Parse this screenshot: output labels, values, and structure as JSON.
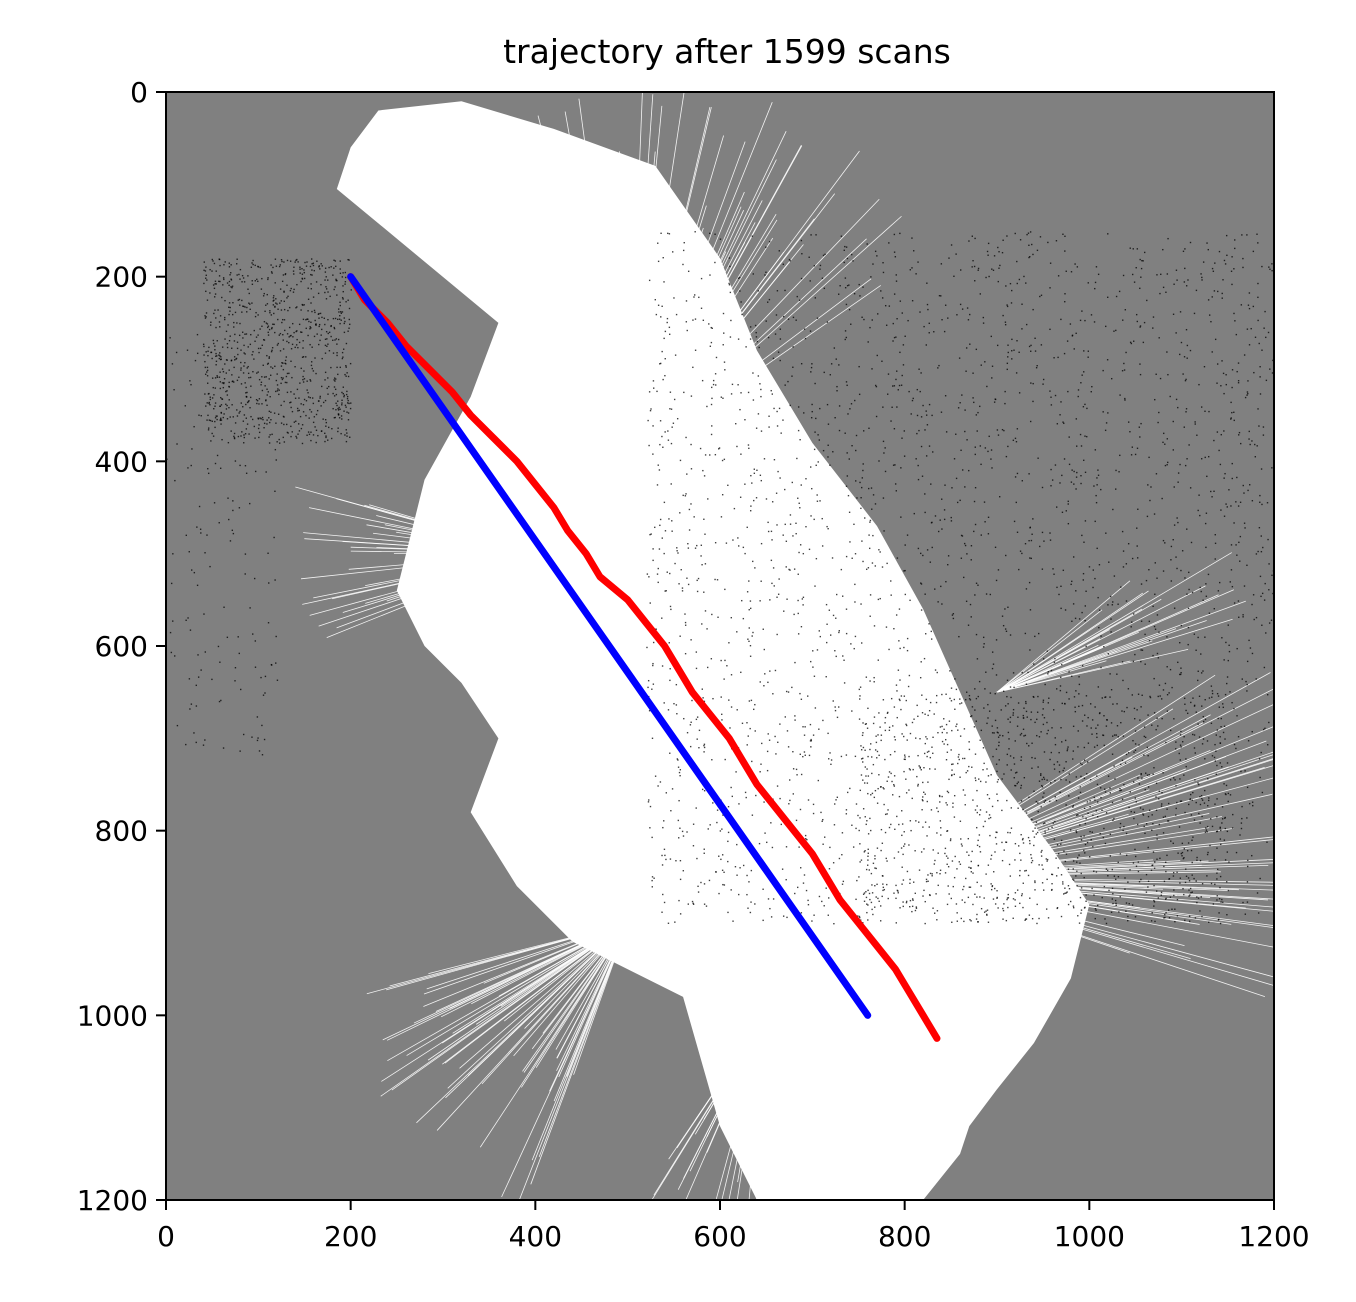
{
  "chart_data": {
    "type": "line",
    "title": "trajectory after 1599 scans",
    "xlabel": "",
    "ylabel": "",
    "xlim": [
      0,
      1200
    ],
    "ylim": [
      1200,
      0
    ],
    "y_inverted": true,
    "grid": false,
    "xticks": [
      "0",
      "200",
      "400",
      "600",
      "800",
      "1000",
      "1200"
    ],
    "yticks": [
      "0",
      "200",
      "400",
      "600",
      "800",
      "1000",
      "1200"
    ],
    "background": {
      "type": "occupancy-map",
      "unknown_color": "#808080",
      "free_color": "#ffffff",
      "occupied_color": "#000000"
    },
    "series": [
      {
        "color": "#ff0000",
        "points": [
          [
            200,
            200
          ],
          [
            215,
            225
          ],
          [
            240,
            250
          ],
          [
            260,
            275
          ],
          [
            285,
            300
          ],
          [
            310,
            325
          ],
          [
            330,
            350
          ],
          [
            355,
            375
          ],
          [
            380,
            400
          ],
          [
            400,
            425
          ],
          [
            420,
            450
          ],
          [
            435,
            475
          ],
          [
            455,
            500
          ],
          [
            470,
            525
          ],
          [
            500,
            550
          ],
          [
            520,
            575
          ],
          [
            540,
            600
          ],
          [
            555,
            625
          ],
          [
            570,
            650
          ],
          [
            590,
            675
          ],
          [
            610,
            700
          ],
          [
            625,
            725
          ],
          [
            640,
            750
          ],
          [
            660,
            775
          ],
          [
            680,
            800
          ],
          [
            700,
            825
          ],
          [
            715,
            850
          ],
          [
            730,
            875
          ],
          [
            750,
            900
          ],
          [
            770,
            925
          ],
          [
            790,
            950
          ],
          [
            805,
            975
          ],
          [
            820,
            1000
          ],
          [
            835,
            1025
          ]
        ]
      },
      {
        "color": "#0000ff",
        "points": [
          [
            200,
            200
          ],
          [
            760,
            1000
          ]
        ]
      }
    ]
  }
}
